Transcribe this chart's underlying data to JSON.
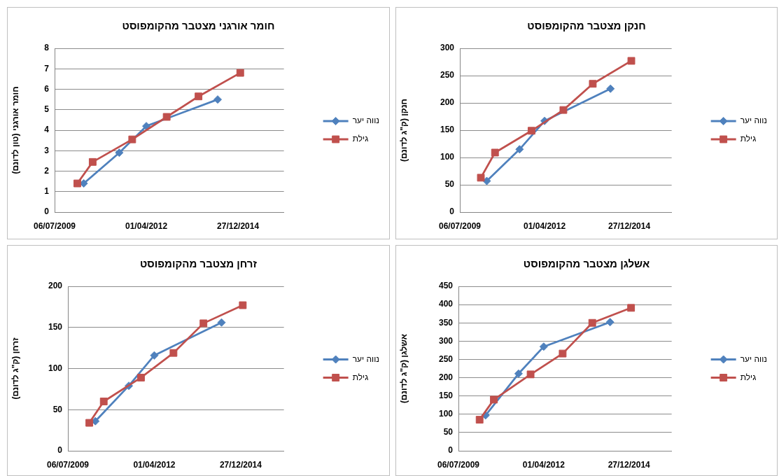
{
  "chart_data": [
    {
      "type": "line",
      "title": "חומר אורגני מצטבר מהקומפוסט",
      "ylabel": "חומר אורגני (טון לדונם)",
      "series": [
        {
          "name": "נווה יער",
          "color": "#4f81bd",
          "marker": "diamond",
          "x": [
            "2010-05-20",
            "2011-06-11",
            "2012-04-01",
            "2014-05-19"
          ],
          "values": [
            1.4,
            2.9,
            4.2,
            5.5
          ]
        },
        {
          "name": "גילת",
          "color": "#c0504d",
          "marker": "square",
          "x": [
            "2010-03-11",
            "2010-08-25",
            "2011-10-30",
            "2012-11-09",
            "2013-10-22",
            "2015-01-20"
          ],
          "values": [
            1.4,
            2.45,
            3.55,
            4.65,
            5.65,
            6.8
          ]
        }
      ],
      "xlim": [
        "2009-07-06",
        "2016-05-10"
      ],
      "xticks": [
        {
          "value": "2009-07-06",
          "label": "06/07/2009"
        },
        {
          "value": "2012-04-01",
          "label": "01/04/2012"
        },
        {
          "value": "2014-12-27",
          "label": "27/12/2014"
        }
      ],
      "ylim": [
        0,
        8
      ],
      "yticks": [
        0,
        1,
        2,
        3,
        4,
        5,
        6,
        7,
        8
      ],
      "grid": "y",
      "legend": "right",
      "line_style": "solid"
    },
    {
      "type": "line",
      "title": "חנקן מצטבר מהקומפוסט",
      "ylabel": "חנקן (ק\"ג לדונם)",
      "series": [
        {
          "name": "נווה יער",
          "color": "#4f81bd",
          "marker": "diamond",
          "x": [
            "2010-05-20",
            "2011-06-11",
            "2012-04-01",
            "2014-05-19"
          ],
          "values": [
            57,
            115,
            167,
            226
          ]
        },
        {
          "name": "גילת",
          "color": "#c0504d",
          "marker": "square",
          "x": [
            "2010-03-11",
            "2010-08-25",
            "2011-10-30",
            "2012-11-09",
            "2013-10-22",
            "2015-01-20"
          ],
          "values": [
            63,
            109,
            149,
            187,
            235,
            277
          ]
        }
      ],
      "xlim": [
        "2009-07-06",
        "2016-05-10"
      ],
      "xticks": [
        {
          "value": "2009-07-06",
          "label": "06/07/2009"
        },
        {
          "value": "2012-04-01",
          "label": "01/04/2012"
        },
        {
          "value": "2014-12-27",
          "label": "27/12/2014"
        }
      ],
      "ylim": [
        0,
        300
      ],
      "yticks": [
        0,
        50,
        100,
        150,
        200,
        250,
        300
      ],
      "grid": "y",
      "legend": "right",
      "line_style": "solid"
    },
    {
      "type": "line",
      "title": "זרחן מצטבר מהקומפוסט",
      "ylabel": "זרחן (ק\"ג לדונם)",
      "series": [
        {
          "name": "נווה יער",
          "color": "#4f81bd",
          "marker": "diamond",
          "x": [
            "2010-05-20",
            "2011-06-11",
            "2012-04-01",
            "2014-05-19"
          ],
          "values": [
            36,
            79,
            116,
            156
          ]
        },
        {
          "name": "גילת",
          "color": "#c0504d",
          "marker": "square",
          "x": [
            "2010-03-11",
            "2010-08-25",
            "2011-10-30",
            "2012-11-09",
            "2013-10-22",
            "2015-01-20"
          ],
          "values": [
            34,
            60,
            89,
            119,
            155,
            177
          ]
        }
      ],
      "xlim": [
        "2009-07-06",
        "2016-05-10"
      ],
      "xticks": [
        {
          "value": "2009-07-06",
          "label": "06/07/2009"
        },
        {
          "value": "2012-04-01",
          "label": "01/04/2012"
        },
        {
          "value": "2014-12-27",
          "label": "27/12/2014"
        }
      ],
      "ylim": [
        0,
        200
      ],
      "yticks": [
        0,
        50,
        100,
        150,
        200
      ],
      "grid": "y",
      "legend": "right",
      "line_style": "solid"
    },
    {
      "type": "line",
      "title": "אשלגן מצטבר מהקומפוסט",
      "ylabel": "אשלגן (ק\"ג לדונם)",
      "series": [
        {
          "name": "נווה יער",
          "color": "#4f81bd",
          "marker": "diamond",
          "x": [
            "2010-05-20",
            "2011-06-11",
            "2012-04-01",
            "2014-05-19"
          ],
          "values": [
            97,
            211,
            285,
            352
          ]
        },
        {
          "name": "גילת",
          "color": "#c0504d",
          "marker": "square",
          "x": [
            "2010-03-11",
            "2010-08-25",
            "2011-10-30",
            "2012-11-09",
            "2013-10-22",
            "2015-01-20"
          ],
          "values": [
            85,
            140,
            209,
            266,
            350,
            391
          ]
        }
      ],
      "xlim": [
        "2009-07-06",
        "2016-05-10"
      ],
      "xticks": [
        {
          "value": "2009-07-06",
          "label": "06/07/2009"
        },
        {
          "value": "2012-04-01",
          "label": "01/04/2012"
        },
        {
          "value": "2014-12-27",
          "label": "27/12/2014"
        }
      ],
      "ylim": [
        0,
        450
      ],
      "yticks": [
        0,
        50,
        100,
        150,
        200,
        250,
        300,
        350,
        400,
        450
      ],
      "grid": "y",
      "legend": "right",
      "line_style": "solid"
    }
  ]
}
